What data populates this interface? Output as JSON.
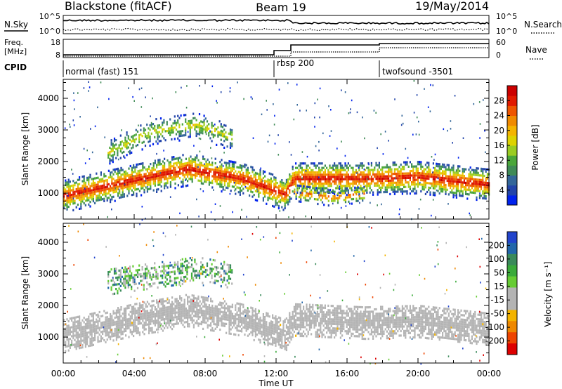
{
  "header": {
    "station": "Blackstone (fitACF)",
    "beam": "Beam 19",
    "date": "19/May/2014"
  },
  "panels": {
    "nsky": {
      "label": "N.Sky",
      "tick_hi": "10^5",
      "tick_lo": "10^0"
    },
    "nsearch": {
      "label": "N.Search",
      "tick_hi": "10^5",
      "tick_lo": "10^0"
    },
    "freq": {
      "label_line1": "Freq.",
      "label_line2": "[MHz]",
      "tick_hi": "18",
      "tick_lo": "8"
    },
    "nave": {
      "label": "Nave",
      "tick_hi": "60",
      "tick_lo": "0"
    },
    "cpid": {
      "label": "CPID",
      "modes": [
        {
          "name": "normal (fast) 151",
          "start": "00:00"
        },
        {
          "name": "rbsp 200",
          "start": "12:00"
        },
        {
          "name": "twofsound -3501",
          "start": "17:30"
        }
      ]
    }
  },
  "colors": {
    "power": [
      "#0022ee",
      "#2244aa",
      "#336699",
      "#3f8a56",
      "#4aa63a",
      "#9acc22",
      "#ddd200",
      "#f4b400",
      "#f08a00",
      "#ee5500",
      "#e11a00",
      "#cc0000"
    ],
    "velocity": [
      "#2244cc",
      "#2266aa",
      "#3a8a5a",
      "#3aaa3a",
      "#66cc33",
      "#b4b4b4",
      "#b4b4b4",
      "#f4b400",
      "#ee8800",
      "#ee4400",
      "#dd0000"
    ],
    "ground_scatter": "#b4b4b4"
  },
  "chart_data": [
    {
      "type": "heatmap",
      "title": "Power",
      "ylabel": "Slant Range [km]",
      "xlabel": "Time UT",
      "xlim": [
        "00:00",
        "24:00"
      ],
      "ylim": [
        180,
        4600
      ],
      "x_ticks": [
        "00:00",
        "04:00",
        "08:00",
        "12:00",
        "16:00",
        "20:00",
        "00:00"
      ],
      "y_ticks": [
        1000,
        2000,
        3000,
        4000
      ],
      "colorbar": {
        "label": "Power [dB]",
        "ticks": [
          "4",
          "8",
          "12",
          "16",
          "20",
          "24",
          "28"
        ],
        "range": [
          0,
          30
        ]
      },
      "bands": [
        {
          "name": "main ionospheric band",
          "t_start_hr": 0,
          "t_end_hr": 24,
          "center_km": [
            [
              0,
              950
            ],
            [
              4,
              1450
            ],
            [
              7,
              1800
            ],
            [
              10,
              1500
            ],
            [
              12.5,
              1000
            ],
            [
              13,
              1500
            ],
            [
              17,
              1500
            ],
            [
              20,
              1550
            ],
            [
              24,
              1300
            ]
          ],
          "peak_db": 28
        },
        {
          "name": "upper scatter",
          "t_start_hr": 2.5,
          "t_end_hr": 9.5,
          "center_km": [
            [
              2.5,
              2300
            ],
            [
              5,
              3000
            ],
            [
              7.5,
              3200
            ],
            [
              9.5,
              2800
            ]
          ],
          "peak_db": 16
        },
        {
          "name": "low band",
          "t_start_hr": 13,
          "t_end_hr": 17,
          "center_km": [
            [
              13,
              1050
            ],
            [
              15,
              900
            ],
            [
              17,
              1000
            ]
          ],
          "peak_db": 24
        }
      ]
    },
    {
      "type": "heatmap",
      "title": "Velocity",
      "ylabel": "Slant Range [km]",
      "xlabel": "Time UT",
      "xlim": [
        "00:00",
        "24:00"
      ],
      "ylim": [
        180,
        4600
      ],
      "x_ticks": [
        "00:00",
        "04:00",
        "08:00",
        "12:00",
        "16:00",
        "20:00",
        "00:00"
      ],
      "y_ticks": [
        1000,
        2000,
        3000,
        4000
      ],
      "colorbar": {
        "label": "Velocity [m s⁻¹]",
        "ticks": [
          "200",
          "100",
          "50",
          "15",
          "-15",
          "-50",
          "-100",
          "-200"
        ],
        "range": [
          -250,
          250
        ]
      },
      "bands": [
        {
          "name": "ground scatter band",
          "t_start_hr": 0,
          "t_end_hr": 24,
          "center_km": [
            [
              0,
              1100
            ],
            [
              4,
              1600
            ],
            [
              7,
              1900
            ],
            [
              10,
              1600
            ],
            [
              12.5,
              1100
            ],
            [
              13,
              1600
            ],
            [
              17,
              1500
            ],
            [
              20,
              1550
            ],
            [
              24,
              1300
            ]
          ],
          "velocity": 0
        },
        {
          "name": "upper scatter",
          "t_start_hr": 2.5,
          "t_end_hr": 9.5,
          "center_km": [
            [
              2.5,
              2800
            ],
            [
              5,
              3000
            ],
            [
              7.5,
              3200
            ],
            [
              9.5,
              3000
            ]
          ],
          "velocity": 120
        }
      ]
    }
  ]
}
